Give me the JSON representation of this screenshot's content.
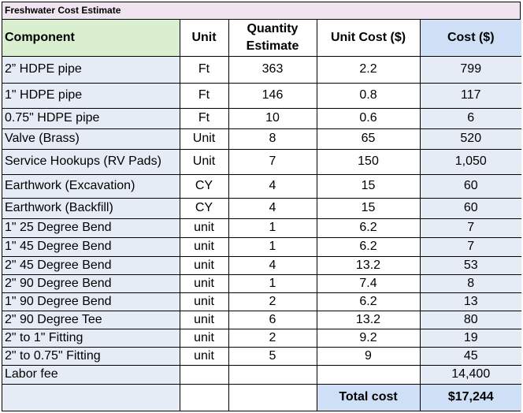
{
  "title": "Freshwater Cost Estimate",
  "headers": {
    "component": "Component",
    "unit": "Unit",
    "quantity_line1": "Quantity",
    "quantity_line2": "Estimate",
    "unit_cost": "Unit Cost ($)",
    "cost": "Cost ($)"
  },
  "rows": [
    {
      "component": "2” HDPE pipe",
      "unit": "Ft",
      "quantity": "363",
      "unit_cost": "2.2",
      "cost": "799"
    },
    {
      "component": "1\" HDPE pipe",
      "unit": "Ft",
      "quantity": "146",
      "unit_cost": "0.8",
      "cost": "117"
    },
    {
      "component": "0.75\" HDPE pipe",
      "unit": "Ft",
      "quantity": "10",
      "unit_cost": "0.6",
      "cost": "6"
    },
    {
      "component": "Valve (Brass)",
      "unit": "Unit",
      "quantity": "8",
      "unit_cost": "65",
      "cost": "520"
    },
    {
      "component": "Service Hookups (RV Pads)",
      "unit": "Unit",
      "quantity": "7",
      "unit_cost": "150",
      "cost": "1,050"
    },
    {
      "component": "Earthwork (Excavation)",
      "unit": "CY",
      "quantity": "4",
      "unit_cost": "15",
      "cost": "60"
    },
    {
      "component": "Earthwork (Backfill)",
      "unit": "CY",
      "quantity": "4",
      "unit_cost": "15",
      "cost": "60"
    },
    {
      "component": "1\" 25 Degree Bend",
      "unit": "unit",
      "quantity": "1",
      "unit_cost": "6.2",
      "cost": "7"
    },
    {
      "component": "1\" 45 Degree Bend",
      "unit": "unit",
      "quantity": "1",
      "unit_cost": "6.2",
      "cost": "7"
    },
    {
      "component": "2\" 45 Degree Bend",
      "unit": "unit",
      "quantity": "4",
      "unit_cost": "13.2",
      "cost": "53"
    },
    {
      "component": "2\" 90 Degree Bend",
      "unit": "unit",
      "quantity": "1",
      "unit_cost": "7.4",
      "cost": "8"
    },
    {
      "component": "1\" 90 Degree Bend",
      "unit": "unit",
      "quantity": "2",
      "unit_cost": "6.2",
      "cost": "13"
    },
    {
      "component": "2\" 90 Degree Tee",
      "unit": "unit",
      "quantity": "6",
      "unit_cost": "13.2",
      "cost": "80"
    },
    {
      "component": "2\" to 1\" Fitting",
      "unit": "unit",
      "quantity": "2",
      "unit_cost": "9.2",
      "cost": "19"
    },
    {
      "component": "2\" to 0.75\" Fitting",
      "unit": "unit",
      "quantity": "5",
      "unit_cost": "9",
      "cost": "45"
    },
    {
      "component": "Labor fee",
      "unit": "",
      "quantity": "",
      "unit_cost": "",
      "cost": "14,400"
    }
  ],
  "footer": {
    "label": "Total cost",
    "value": "$17,244"
  }
}
